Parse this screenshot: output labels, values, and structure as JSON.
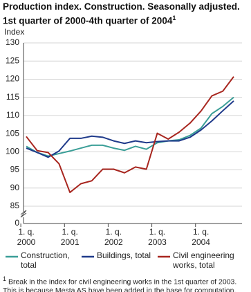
{
  "chart_data": {
    "type": "line",
    "title": "Production index. Construction. Seasonally adjusted. 1st quarter of 2000-4th quarter of 2004",
    "footnote_marker": "1",
    "y_label": "Index",
    "categories": [
      "1. q.\n2000",
      null,
      null,
      null,
      "1. q.\n2001",
      null,
      null,
      null,
      "1. q.\n2002",
      null,
      null,
      null,
      "1. q.\n2003",
      null,
      null,
      null,
      "1. q.\n2004",
      null,
      null,
      null
    ],
    "series": [
      {
        "name": "Construction, total",
        "color": "#3a9e97",
        "values": [
          101.5,
          99.8,
          98.8,
          99.5,
          100.2,
          101,
          101.8,
          101.8,
          101,
          100.4,
          101.5,
          100.7,
          102.5,
          103,
          103.3,
          104.5,
          106.5,
          110.5,
          112.5,
          115
        ]
      },
      {
        "name": "Buildings, total",
        "color": "#1f3a8a",
        "values": [
          101,
          99.8,
          98.5,
          100.2,
          103.7,
          103.7,
          104.3,
          104,
          103,
          102.3,
          103,
          102.5,
          102.8,
          103,
          103,
          104,
          106,
          108.5,
          111.3,
          114
        ]
      },
      {
        "name": "Civil engineering works, total",
        "color": "#a8261f",
        "values": [
          104.2,
          100.3,
          99.8,
          96.7,
          88.8,
          91.2,
          92,
          95.2,
          95.2,
          94.2,
          95.8,
          95.2,
          105.1,
          103.5,
          105.4,
          107.9,
          111.2,
          115.4,
          116.7,
          120.7
        ]
      }
    ],
    "ylim": [
      0,
      130
    ],
    "axis_break": [
      0,
      85
    ],
    "yticks": [
      0,
      85,
      90,
      95,
      100,
      105,
      110,
      115,
      120,
      125,
      130
    ],
    "grid": true,
    "footnote": "Break in the index for civil engineering works in the 1st quarter of 2003. This is because Mesta AS have been added in the base for computation."
  }
}
